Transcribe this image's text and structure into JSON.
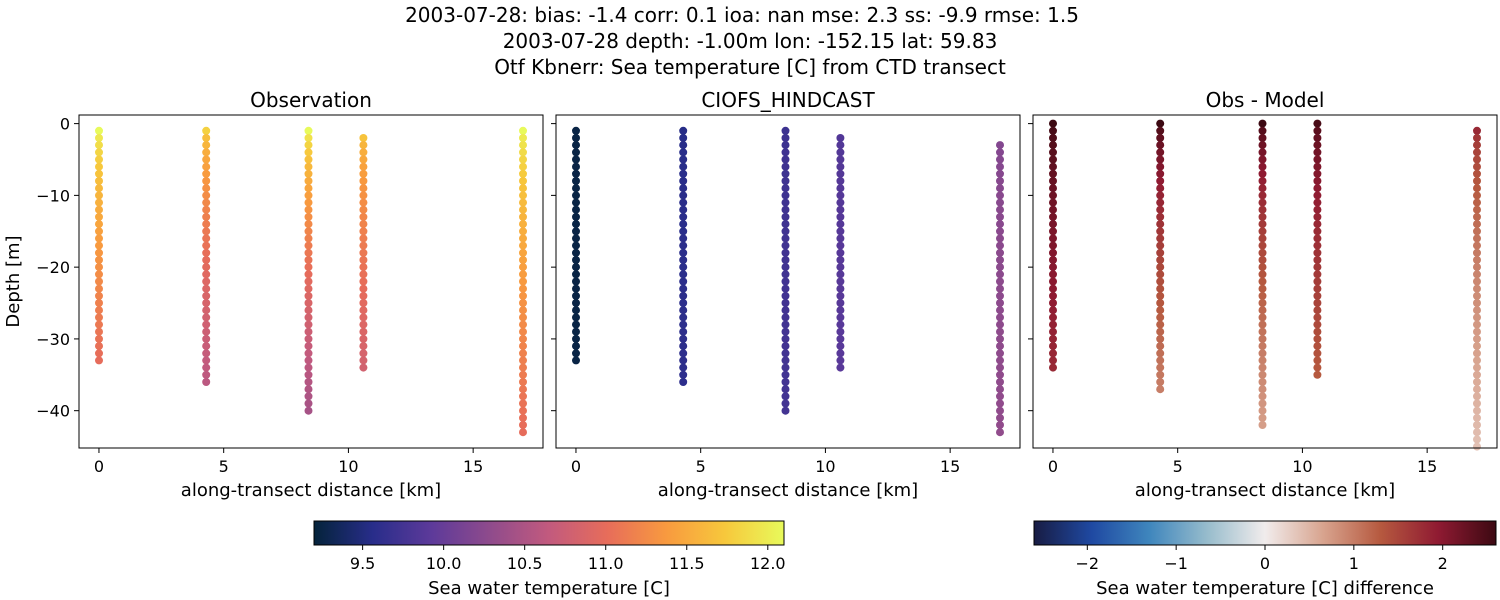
{
  "header": {
    "line1": "2003-07-28: bias: -1.4  corr: 0.1  ioa: nan  mse: 2.3  ss: -9.9  rmse: 1.5",
    "line2": "2003-07-28 depth: -1.00m lon: -152.15 lat: 59.83",
    "line3": "Otf Kbnerr: Sea temperature [C] from CTD transect"
  },
  "colorbars": {
    "temperature": {
      "label": "Sea water temperature [C]",
      "range": [
        9.2,
        12.1
      ],
      "ticks": [
        "9.5",
        "10.0",
        "10.5",
        "11.0",
        "11.5",
        "12.0"
      ],
      "colormap": "thermal"
    },
    "difference": {
      "label": "Sea water temperature [C] difference",
      "range": [
        -2.6,
        2.6
      ],
      "ticks": [
        "−2",
        "−1",
        "0",
        "1",
        "2"
      ],
      "colormap": "balance"
    }
  },
  "chart_data": [
    {
      "type": "scatter",
      "title": "Observation",
      "xlabel": "along-transect distance [km]",
      "ylabel": "Depth [m]",
      "xlim": [
        -0.8,
        17.8
      ],
      "ylim": [
        -45.2,
        1.2
      ],
      "xticks": [
        "0",
        "5",
        "10",
        "15"
      ],
      "yticks": [
        "0",
        "−10",
        "−20",
        "−30",
        "−40"
      ],
      "color_key": "temperature",
      "x": [
        0,
        4.3,
        8.4,
        10.6,
        17.0
      ],
      "profiles": [
        {
          "x": 0,
          "depth_top": -1,
          "depth_bottom": -33,
          "v_top": 12.1,
          "v_bottom": 11.0
        },
        {
          "x": 4.3,
          "depth_top": -1,
          "depth_bottom": -36,
          "v_top": 11.8,
          "v_bottom": 10.6
        },
        {
          "x": 8.4,
          "depth_top": -1,
          "depth_bottom": -40,
          "v_top": 12.1,
          "v_bottom": 10.45
        },
        {
          "x": 10.6,
          "depth_top": -2,
          "depth_bottom": -34,
          "v_top": 11.7,
          "v_bottom": 10.8
        },
        {
          "x": 17.0,
          "depth_top": -1,
          "depth_bottom": -43,
          "v_top": 12.1,
          "v_bottom": 11.0
        }
      ]
    },
    {
      "type": "scatter",
      "title": "CIOFS_HINDCAST",
      "xlabel": "along-transect distance [km]",
      "ylabel": "",
      "xlim": [
        -0.8,
        17.8
      ],
      "ylim": [
        -45.2,
        1.2
      ],
      "xticks": [
        "0",
        "5",
        "10",
        "15"
      ],
      "yticks": [],
      "color_key": "temperature",
      "x": [
        0,
        4.3,
        8.4,
        10.6,
        17.0
      ],
      "profiles": [
        {
          "x": 0,
          "depth_top": -1,
          "depth_bottom": -33,
          "v_top": 9.25,
          "v_bottom": 9.25
        },
        {
          "x": 4.3,
          "depth_top": -1,
          "depth_bottom": -36,
          "v_top": 9.55,
          "v_bottom": 9.6
        },
        {
          "x": 8.4,
          "depth_top": -1,
          "depth_bottom": -40,
          "v_top": 9.7,
          "v_bottom": 9.75
        },
        {
          "x": 10.6,
          "depth_top": -2,
          "depth_bottom": -34,
          "v_top": 9.85,
          "v_bottom": 9.9
        },
        {
          "x": 17.0,
          "depth_top": -3,
          "depth_bottom": -43,
          "v_top": 10.2,
          "v_bottom": 10.3
        }
      ]
    },
    {
      "type": "scatter",
      "title": "Obs - Model",
      "xlabel": "along-transect distance [km]",
      "ylabel": "",
      "xlim": [
        -0.8,
        17.8
      ],
      "ylim": [
        -45.2,
        1.2
      ],
      "xticks": [
        "0",
        "5",
        "10",
        "15"
      ],
      "yticks": [],
      "color_key": "difference",
      "x": [
        0,
        4.3,
        8.4,
        10.6,
        17.0
      ],
      "profiles": [
        {
          "x": 0,
          "depth_top": 0,
          "depth_bottom": -34,
          "v_top": 2.6,
          "v_bottom": 1.8
        },
        {
          "x": 4.3,
          "depth_top": 0,
          "depth_bottom": -37.5,
          "v_top": 2.6,
          "v_bottom": 0.95
        },
        {
          "x": 8.4,
          "depth_top": 0,
          "depth_bottom": -42,
          "v_top": 2.6,
          "v_bottom": 0.7
        },
        {
          "x": 10.6,
          "depth_top": 0,
          "depth_bottom": -35,
          "v_top": 2.5,
          "v_bottom": 1.3
        },
        {
          "x": 17.0,
          "depth_top": -1,
          "depth_bottom": -45,
          "v_top": 1.8,
          "v_bottom": 0.4
        }
      ]
    }
  ]
}
